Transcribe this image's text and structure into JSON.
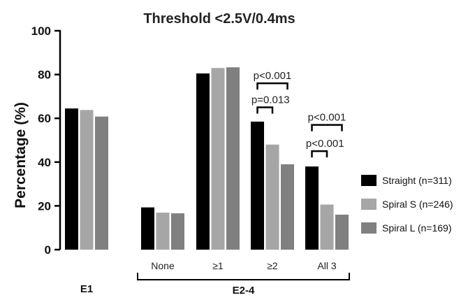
{
  "chart_data": {
    "type": "bar",
    "title": "Threshold <2.5V/0.4ms",
    "ylabel": "Percentage  (%)",
    "xlabel": "",
    "ylim": [
      0,
      100
    ],
    "yticks": [
      "0",
      "20",
      "40",
      "60",
      "80",
      "100"
    ],
    "categories": [
      "E1",
      "None",
      "≥1",
      "≥2",
      "All 3"
    ],
    "category_labels": [
      "",
      "None",
      "≥1",
      "≥2",
      "All 3"
    ],
    "group_labels": [
      "E1",
      "E2-4"
    ],
    "series": [
      {
        "name": "Straight (n=311)",
        "color": "#000000",
        "values": [
          64.5,
          19.3,
          80.5,
          58.5,
          38.0
        ]
      },
      {
        "name": "Spiral S (n=246)",
        "color": "#a6a6a6",
        "values": [
          63.8,
          16.9,
          83.0,
          48.0,
          20.6
        ]
      },
      {
        "name": "Spiral L (n=169)",
        "color": "#808080",
        "values": [
          60.8,
          16.6,
          83.3,
          39.0,
          16.0
        ]
      }
    ],
    "annotations": [
      {
        "text": "p<0.001",
        "category": "≥2",
        "from_series": 0,
        "to_series": 2,
        "level": 76
      },
      {
        "text": "p=0.013",
        "category": "≥2",
        "from_series": 0,
        "to_series": 1,
        "level": 65
      },
      {
        "text": "p<0.001",
        "category": "All 3",
        "from_series": 0,
        "to_series": 2,
        "level": 57
      },
      {
        "text": "p<0.001",
        "category": "All 3",
        "from_series": 0,
        "to_series": 1,
        "level": 45
      }
    ],
    "legend_position": "right",
    "grid": false
  }
}
